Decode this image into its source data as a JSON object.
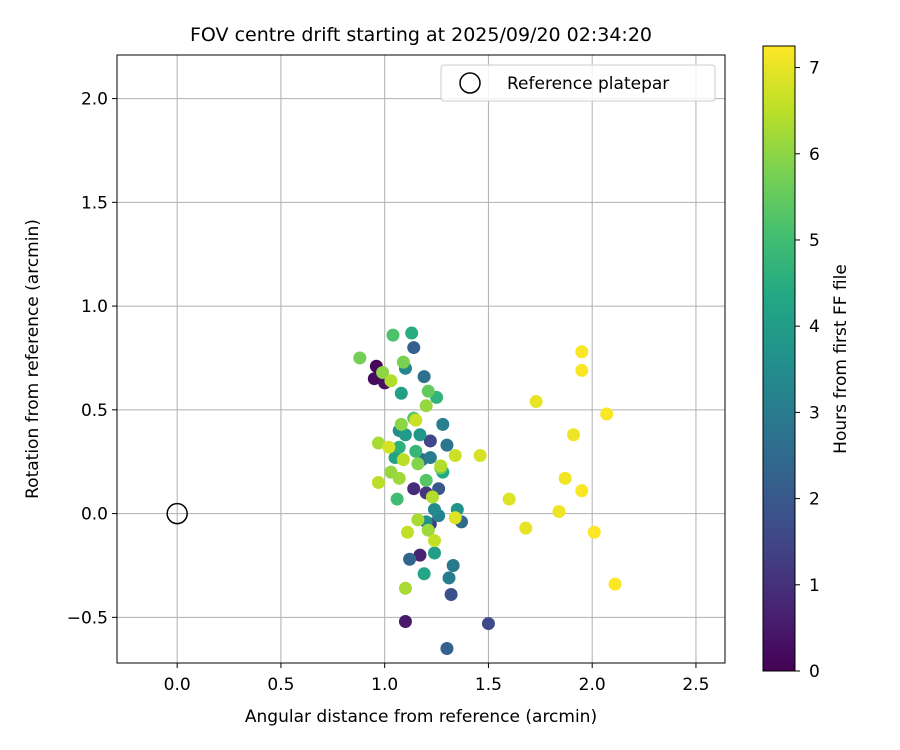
{
  "chart_data": {
    "type": "scatter",
    "title": "FOV centre drift starting at 2025/09/20 02:34:20",
    "xlabel": "Angular distance from reference (arcmin)",
    "ylabel": "Rotation from reference (arcmin)",
    "xlim": [
      -0.29,
      2.64
    ],
    "ylim": [
      -0.72,
      2.21
    ],
    "xticks": [
      0.0,
      0.5,
      1.0,
      1.5,
      2.0,
      2.5
    ],
    "xtick_labels": [
      "0.0",
      "0.5",
      "1.0",
      "1.5",
      "2.0",
      "2.5"
    ],
    "yticks": [
      -0.5,
      0.0,
      0.5,
      1.0,
      1.5,
      2.0
    ],
    "ytick_labels": [
      "−0.5",
      "0.0",
      "0.5",
      "1.0",
      "1.5",
      "2.0"
    ],
    "grid": true,
    "legend": {
      "position": "top-right",
      "label": "Reference platepar"
    },
    "reference_point": {
      "x": 0.0,
      "y": 0.0
    },
    "colorbar": {
      "label": "Hours from first FF file",
      "min": 0,
      "max": 7.25,
      "ticks": [
        0,
        1,
        2,
        3,
        4,
        5,
        6,
        7
      ],
      "tick_labels": [
        "0",
        "1",
        "2",
        "3",
        "4",
        "5",
        "6",
        "7"
      ],
      "colormap": "viridis"
    },
    "points": [
      {
        "x": 0.96,
        "y": 0.71,
        "h": 0.1
      },
      {
        "x": 0.95,
        "y": 0.65,
        "h": 0.2
      },
      {
        "x": 1.0,
        "y": 0.63,
        "h": 0.3
      },
      {
        "x": 1.1,
        "y": -0.52,
        "h": 0.5
      },
      {
        "x": 1.17,
        "y": -0.2,
        "h": 0.7
      },
      {
        "x": 1.14,
        "y": 0.12,
        "h": 0.9
      },
      {
        "x": 1.2,
        "y": 0.1,
        "h": 1.1
      },
      {
        "x": 1.22,
        "y": -0.05,
        "h": 1.3
      },
      {
        "x": 1.22,
        "y": 0.35,
        "h": 1.5
      },
      {
        "x": 1.5,
        "y": -0.53,
        "h": 1.6
      },
      {
        "x": 1.32,
        "y": -0.39,
        "h": 1.8
      },
      {
        "x": 1.26,
        "y": 0.12,
        "h": 2.0
      },
      {
        "x": 1.14,
        "y": 0.8,
        "h": 2.2
      },
      {
        "x": 1.3,
        "y": -0.65,
        "h": 2.3
      },
      {
        "x": 1.12,
        "y": -0.22,
        "h": 2.4
      },
      {
        "x": 1.37,
        "y": -0.04,
        "h": 2.5
      },
      {
        "x": 1.18,
        "y": 0.26,
        "h": 2.6
      },
      {
        "x": 1.19,
        "y": 0.66,
        "h": 2.7
      },
      {
        "x": 1.3,
        "y": 0.33,
        "h": 2.8
      },
      {
        "x": 1.33,
        "y": -0.25,
        "h": 2.9
      },
      {
        "x": 1.31,
        "y": -0.31,
        "h": 3.0
      },
      {
        "x": 1.22,
        "y": 0.27,
        "h": 3.0
      },
      {
        "x": 1.28,
        "y": 0.43,
        "h": 3.1
      },
      {
        "x": 1.26,
        "y": -0.01,
        "h": 3.2
      },
      {
        "x": 1.1,
        "y": 0.7,
        "h": 3.3
      },
      {
        "x": 1.24,
        "y": 0.02,
        "h": 3.4
      },
      {
        "x": 1.07,
        "y": 0.4,
        "h": 3.5
      },
      {
        "x": 1.2,
        "y": -0.04,
        "h": 3.6
      },
      {
        "x": 1.35,
        "y": 0.02,
        "h": 3.7
      },
      {
        "x": 1.17,
        "y": 0.38,
        "h": 3.8
      },
      {
        "x": 1.1,
        "y": 0.38,
        "h": 3.9
      },
      {
        "x": 1.24,
        "y": -0.19,
        "h": 4.0
      },
      {
        "x": 1.08,
        "y": 0.58,
        "h": 4.1
      },
      {
        "x": 1.05,
        "y": 0.27,
        "h": 4.2
      },
      {
        "x": 1.19,
        "y": -0.29,
        "h": 4.3
      },
      {
        "x": 1.28,
        "y": 0.2,
        "h": 4.4
      },
      {
        "x": 1.13,
        "y": 0.87,
        "h": 4.5
      },
      {
        "x": 1.07,
        "y": 0.32,
        "h": 4.6
      },
      {
        "x": 1.25,
        "y": 0.56,
        "h": 4.7
      },
      {
        "x": 1.15,
        "y": 0.3,
        "h": 4.8
      },
      {
        "x": 1.06,
        "y": 0.07,
        "h": 5.0
      },
      {
        "x": 1.04,
        "y": 0.86,
        "h": 5.2
      },
      {
        "x": 1.2,
        "y": 0.16,
        "h": 5.3
      },
      {
        "x": 1.14,
        "y": 0.46,
        "h": 5.4
      },
      {
        "x": 1.21,
        "y": 0.59,
        "h": 5.5
      },
      {
        "x": 1.27,
        "y": 0.22,
        "h": 5.6
      },
      {
        "x": 0.88,
        "y": 0.75,
        "h": 5.7
      },
      {
        "x": 1.09,
        "y": 0.73,
        "h": 5.8
      },
      {
        "x": 1.16,
        "y": 0.24,
        "h": 5.9
      },
      {
        "x": 0.99,
        "y": 0.68,
        "h": 6.0
      },
      {
        "x": 1.08,
        "y": 0.43,
        "h": 6.0
      },
      {
        "x": 1.03,
        "y": 0.2,
        "h": 6.1
      },
      {
        "x": 1.2,
        "y": 0.52,
        "h": 6.1
      },
      {
        "x": 1.07,
        "y": 0.17,
        "h": 6.2
      },
      {
        "x": 1.21,
        "y": -0.08,
        "h": 6.2
      },
      {
        "x": 0.97,
        "y": 0.34,
        "h": 6.3
      },
      {
        "x": 1.1,
        "y": -0.36,
        "h": 6.3
      },
      {
        "x": 1.16,
        "y": -0.03,
        "h": 6.3
      },
      {
        "x": 1.27,
        "y": 0.23,
        "h": 6.4
      },
      {
        "x": 1.03,
        "y": 0.64,
        "h": 6.4
      },
      {
        "x": 1.23,
        "y": 0.08,
        "h": 6.4
      },
      {
        "x": 1.09,
        "y": 0.26,
        "h": 6.5
      },
      {
        "x": 0.97,
        "y": 0.15,
        "h": 6.5
      },
      {
        "x": 1.11,
        "y": -0.09,
        "h": 6.6
      },
      {
        "x": 1.24,
        "y": -0.13,
        "h": 6.6
      },
      {
        "x": 1.34,
        "y": 0.28,
        "h": 6.7
      },
      {
        "x": 1.15,
        "y": 0.45,
        "h": 6.7
      },
      {
        "x": 1.02,
        "y": 0.32,
        "h": 6.8
      },
      {
        "x": 1.46,
        "y": 0.28,
        "h": 6.8
      },
      {
        "x": 1.6,
        "y": 0.07,
        "h": 6.9
      },
      {
        "x": 1.34,
        "y": -0.02,
        "h": 6.9
      },
      {
        "x": 1.73,
        "y": 0.54,
        "h": 7.0
      },
      {
        "x": 1.68,
        "y": -0.07,
        "h": 7.0
      },
      {
        "x": 1.84,
        "y": 0.01,
        "h": 7.1
      },
      {
        "x": 1.87,
        "y": 0.17,
        "h": 7.1
      },
      {
        "x": 1.91,
        "y": 0.38,
        "h": 7.1
      },
      {
        "x": 1.95,
        "y": 0.11,
        "h": 7.2
      },
      {
        "x": 1.95,
        "y": 0.69,
        "h": 7.2
      },
      {
        "x": 1.95,
        "y": 0.78,
        "h": 7.2
      },
      {
        "x": 2.07,
        "y": 0.48,
        "h": 7.2
      },
      {
        "x": 2.01,
        "y": -0.09,
        "h": 7.25
      },
      {
        "x": 2.11,
        "y": -0.34,
        "h": 7.25
      }
    ]
  }
}
